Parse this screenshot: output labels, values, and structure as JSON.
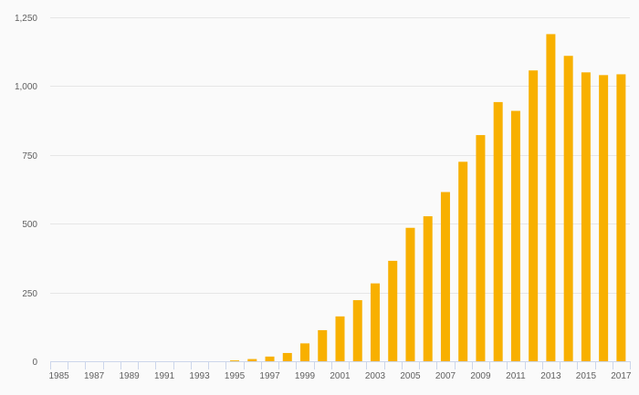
{
  "chart_data": {
    "type": "bar",
    "title": "",
    "xlabel": "",
    "ylabel": "",
    "grid": true,
    "legend": "none",
    "bar_color": "#f8b000",
    "ylim": [
      0,
      1250
    ],
    "yticks": [
      0,
      250,
      500,
      750,
      1000,
      1250
    ],
    "ytick_labels": [
      "0",
      "250",
      "500",
      "750",
      "1,000",
      "1,250"
    ],
    "categories": [
      "1985",
      "1986",
      "1987",
      "1988",
      "1989",
      "1990",
      "1991",
      "1992",
      "1993",
      "1994",
      "1995",
      "1996",
      "1997",
      "1998",
      "1999",
      "2000",
      "2001",
      "2002",
      "2003",
      "2004",
      "2005",
      "2006",
      "2007",
      "2008",
      "2009",
      "2010",
      "2011",
      "2012",
      "2013",
      "2014",
      "2015",
      "2016",
      "2017"
    ],
    "xtick_labels": [
      "1985",
      "1987",
      "1989",
      "1991",
      "1993",
      "1995",
      "1997",
      "1999",
      "2001",
      "2003",
      "2005",
      "2007",
      "2009",
      "2011",
      "2013",
      "2015",
      "2017"
    ],
    "values": [
      0,
      0,
      0,
      0,
      0,
      0,
      0,
      0,
      0,
      0,
      3,
      8,
      17,
      30,
      65,
      113,
      163,
      222,
      283,
      365,
      485,
      527,
      615,
      725,
      822,
      942,
      910,
      1057,
      1189,
      1110,
      1050,
      1040,
      1043
    ]
  }
}
